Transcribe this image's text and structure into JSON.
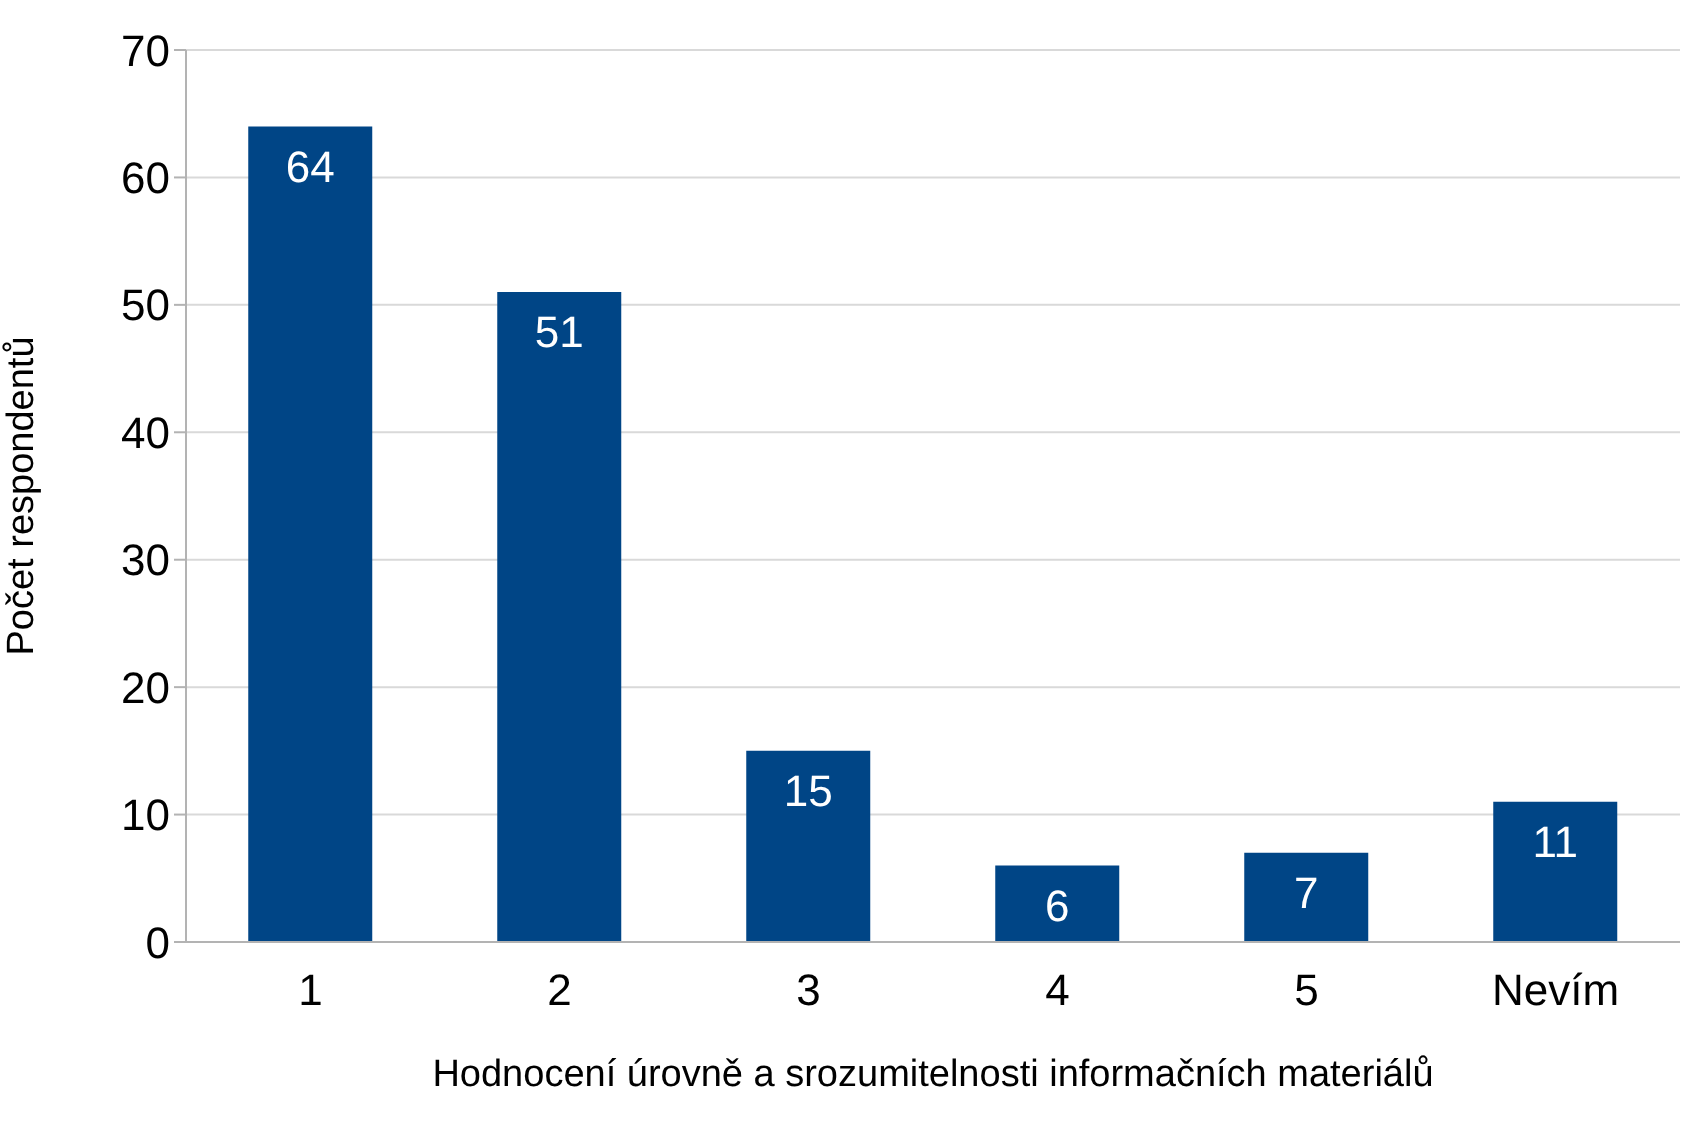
{
  "chart_data": {
    "type": "bar",
    "xlabel": "Hodnocení úrovně a srozumitelnosti informačních materiálů",
    "ylabel": "Počet respondentů",
    "categories": [
      "1",
      "2",
      "3",
      "4",
      "5",
      "Nevím"
    ],
    "values": [
      64,
      51,
      15,
      6,
      7,
      11
    ],
    "color": "#004586",
    "ylim": [
      0,
      70
    ],
    "yticks": [
      0,
      10,
      20,
      30,
      40,
      50,
      60,
      70
    ],
    "grid": "y",
    "data_labels": true
  }
}
